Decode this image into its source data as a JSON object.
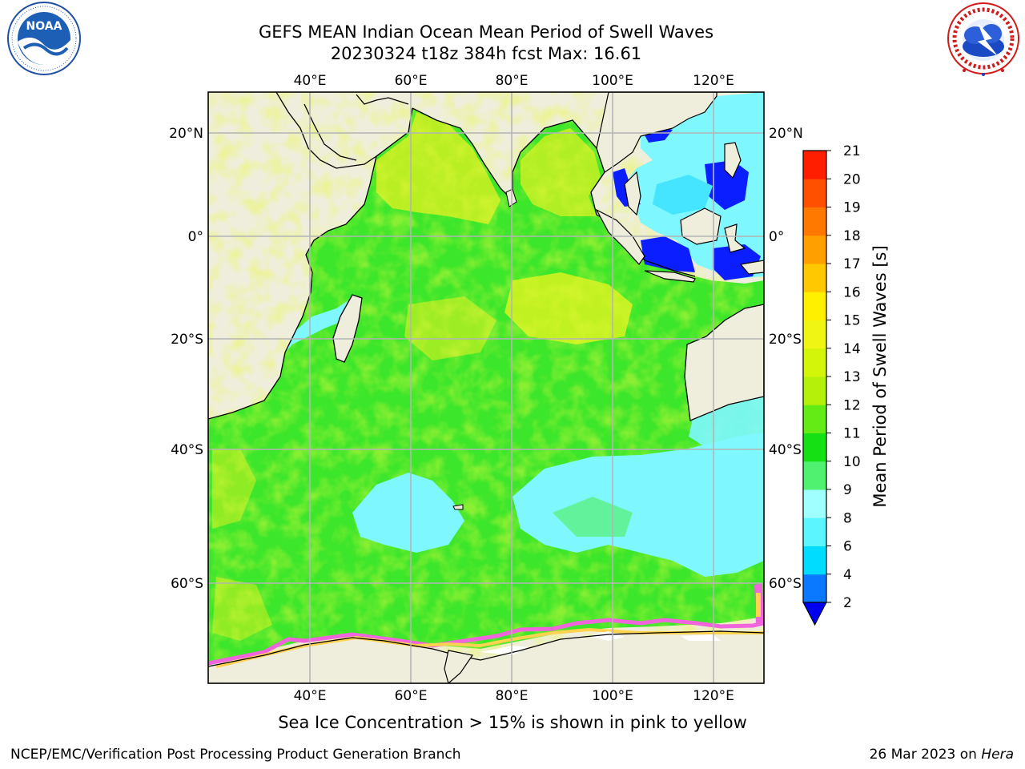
{
  "header": {
    "title_line1": "GEFS MEAN Indian Ocean Mean Period of Swell Waves",
    "title_line2": "20230324 t18z 384h fcst   Max: 16.61"
  },
  "logos": {
    "left": {
      "name": "noaa-logo",
      "text": "NOAA",
      "ring_text": "NATIONAL OCEANIC AND ATMOSPHERIC ADMINISTRATION · U.S. DEPARTMENT OF COMMERCE"
    },
    "right": {
      "name": "nws-logo",
      "ring_text": "NATIONAL WEATHER SERVICE"
    }
  },
  "map": {
    "lon_labels_top": [
      "40°E",
      "60°E",
      "80°E",
      "100°E",
      "120°E"
    ],
    "lon_labels_bottom": [
      "40°E",
      "60°E",
      "80°E",
      "100°E",
      "120°E"
    ],
    "lat_labels_left": [
      "20°N",
      "0°",
      "20°S",
      "40°S",
      "60°S"
    ],
    "lat_labels_right": [
      "20°N",
      "0°",
      "20°S",
      "40°S",
      "60°S"
    ],
    "colors": {
      "land": "#efeedd",
      "grid": "#b4b4b4",
      "ocean_main": "#3ce62a",
      "ocean_yellow": "#d6f01e",
      "ocean_cyan": "#7ff7ff",
      "ocean_blue": "#0a1eff",
      "sea_ice_pink": "#f064dc",
      "sea_ice_yellow": "#ffd250"
    }
  },
  "colorbar": {
    "title": "Mean Period of Swell Waves [s]",
    "tick_labels": [
      "2",
      "4",
      "6",
      "8",
      "9",
      "10",
      "11",
      "12",
      "13",
      "14",
      "15",
      "16",
      "17",
      "18",
      "19",
      "20",
      "21"
    ],
    "colors": [
      "#0514ff",
      "#0a78ff",
      "#00dcff",
      "#5af5ff",
      "#a0ffff",
      "#50f070",
      "#14e014",
      "#64ea14",
      "#b4f00a",
      "#d2f50a",
      "#f0f514",
      "#fff000",
      "#ffc800",
      "#ffa000",
      "#ff7800",
      "#ff5000",
      "#ff1e00",
      "#ff0000"
    ],
    "extend_color": "#0000f0"
  },
  "footer": {
    "note": "Sea Ice Concentration > 15% is shown in pink to yellow",
    "left": "NCEP/EMC/Verification Post Processing Product Generation Branch",
    "right_date": "26 Mar 2023 on",
    "right_machine": "Hera"
  }
}
